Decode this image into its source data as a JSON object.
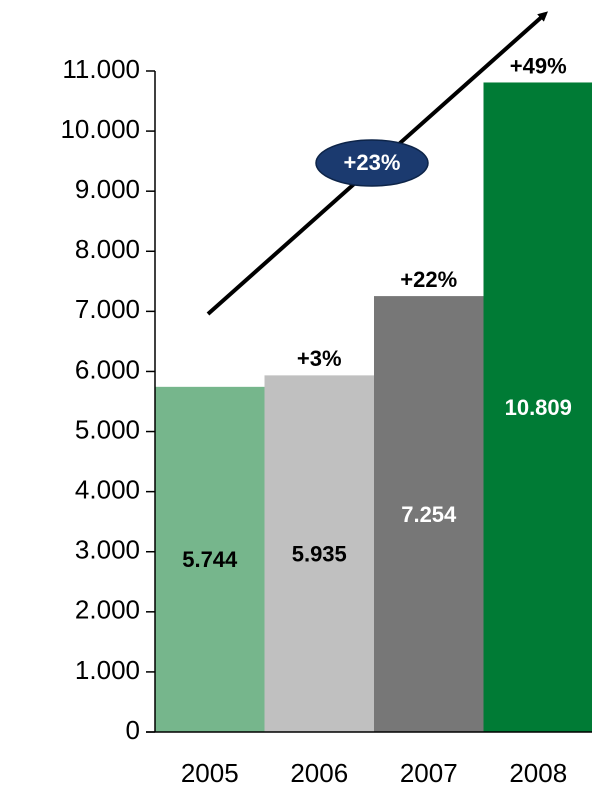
{
  "chart_data": {
    "type": "bar",
    "categories": [
      "2005",
      "2006",
      "2007",
      "2008"
    ],
    "values": [
      5744,
      5935,
      7254,
      10809
    ],
    "value_labels": [
      "5.744",
      "5.935",
      "7.254",
      "10.809"
    ],
    "colors": [
      "#76b68c",
      "#c0c0c0",
      "#777777",
      "#007b35"
    ],
    "value_label_colors": [
      "#000000",
      "#000000",
      "#ffffff",
      "#ffffff"
    ],
    "growth_labels": [
      null,
      "+3%",
      "+22%",
      "+49%"
    ],
    "trend_label": "+23%",
    "ylim": [
      0,
      11000
    ],
    "yticks": [
      {
        "value": 0,
        "label": "0"
      },
      {
        "value": 1000,
        "label": "1.000"
      },
      {
        "value": 2000,
        "label": "2.000"
      },
      {
        "value": 3000,
        "label": "3.000"
      },
      {
        "value": 4000,
        "label": "4.000"
      },
      {
        "value": 5000,
        "label": "5.000"
      },
      {
        "value": 6000,
        "label": "6.000"
      },
      {
        "value": 7000,
        "label": "7.000"
      },
      {
        "value": 8000,
        "label": "8.000"
      },
      {
        "value": 9000,
        "label": "9.000"
      },
      {
        "value": 10000,
        "label": "10.000"
      },
      {
        "value": 11000,
        "label": "11.000"
      }
    ]
  }
}
